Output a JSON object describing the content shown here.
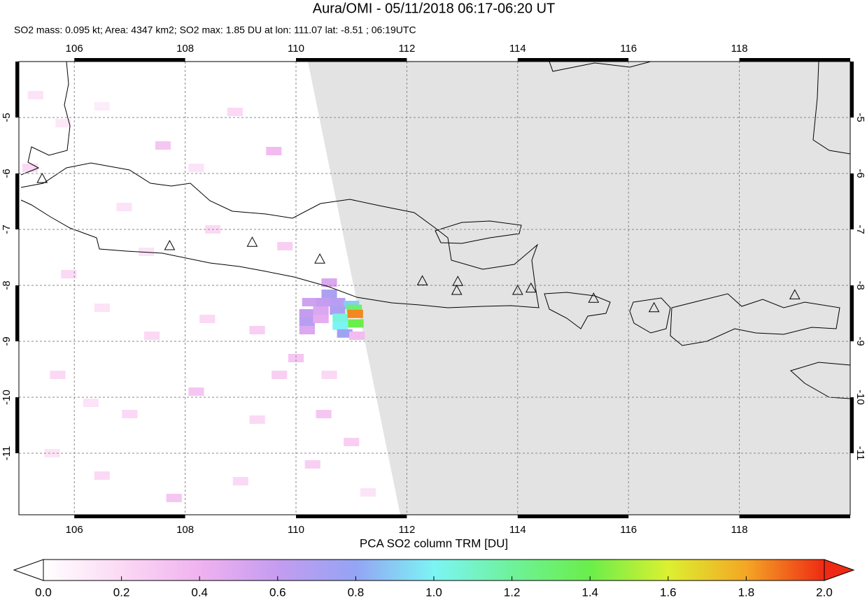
{
  "chart_data": {
    "type": "map",
    "title": "Aura/OMI - 05/11/2018 06:17-06:20 UT",
    "subtitle": "SO2 mass: 0.095 kt; Area: 4347 km2; SO2 max: 1.85 DU at lon: 111.07 lat: -8.51 ; 06:19UTC",
    "xlim": [
      105,
      120
    ],
    "ylim": [
      -12.1,
      -4
    ],
    "xticks": [
      106,
      108,
      110,
      112,
      114,
      116,
      118
    ],
    "yticks": [
      -5,
      -6,
      -7,
      -8,
      -9,
      -10,
      -11
    ],
    "grid": true,
    "pixels": {
      "lon": [
        105.3,
        105.8,
        106.5,
        107.6,
        108.2,
        109.6,
        108.9,
        105.2,
        106.9,
        107.3,
        108.5,
        109.8,
        105.9,
        106.5,
        107.4,
        108.4,
        109.3,
        109.7,
        105.7,
        106.3,
        107.0,
        108.2,
        109.3,
        110.5,
        111.0,
        105.6,
        106.5,
        107.8,
        109.0,
        110.3,
        111.3,
        110.0,
        110.6,
        110.25,
        110.5,
        110.75,
        111.0,
        110.2,
        110.45,
        110.75,
        111.05,
        110.2,
        110.45,
        110.8,
        110.2,
        110.8,
        111.08,
        110.88,
        110.6,
        110.6,
        111.1,
        111.07
      ],
      "lat": [
        -4.6,
        -5.1,
        -4.8,
        -5.5,
        -5.9,
        -5.6,
        -4.9,
        -5.9,
        -6.6,
        -7.4,
        -7.0,
        -7.3,
        -7.8,
        -8.4,
        -8.9,
        -8.6,
        -8.8,
        -9.6,
        -9.6,
        -10.1,
        -10.3,
        -9.9,
        -10.4,
        -10.3,
        -10.8,
        -11.0,
        -11.4,
        -11.8,
        -11.5,
        -11.2,
        -11.7,
        -9.3,
        -9.6,
        -8.3,
        -8.3,
        -8.3,
        -8.35,
        -8.5,
        -8.45,
        -8.45,
        -8.42,
        -8.65,
        -8.6,
        -8.58,
        -8.8,
        -8.72,
        -8.68,
        -8.86,
        -8.15,
        -7.95,
        -8.9,
        -8.51
      ],
      "values": [
        0.15,
        0.12,
        0.1,
        0.3,
        0.15,
        0.35,
        0.2,
        0.2,
        0.15,
        0.15,
        0.2,
        0.25,
        0.2,
        0.15,
        0.2,
        0.2,
        0.25,
        0.25,
        0.2,
        0.15,
        0.2,
        0.3,
        0.2,
        0.3,
        0.25,
        0.15,
        0.2,
        0.3,
        0.2,
        0.25,
        0.15,
        0.3,
        0.2,
        0.55,
        0.6,
        0.65,
        0.9,
        0.6,
        0.5,
        0.7,
        1.3,
        0.65,
        0.45,
        1.05,
        0.5,
        1.0,
        1.4,
        0.75,
        0.7,
        0.5,
        0.35,
        1.85
      ]
    },
    "volcanoes": {
      "lon": [
        105.42,
        107.72,
        109.21,
        110.43,
        112.28,
        112.92,
        112.9,
        114.0,
        114.24,
        115.37,
        116.46,
        119.0
      ],
      "lat": [
        -6.1,
        -7.3,
        -7.24,
        -7.54,
        -7.93,
        -7.94,
        -8.1,
        -8.1,
        -8.06,
        -8.24,
        -8.41,
        -8.18
      ]
    },
    "colorbar": {
      "label": "PCA SO2 column TRM [DU]",
      "lim": [
        0,
        2
      ],
      "ticks": [
        {
          "value": 0,
          "label": "0.0"
        },
        {
          "value": 0.2,
          "label": "0.2"
        },
        {
          "value": 0.4,
          "label": "0.4"
        },
        {
          "value": 0.6,
          "label": "0.6"
        },
        {
          "value": 0.8,
          "label": "0.8"
        },
        {
          "value": 1,
          "label": "1.0"
        },
        {
          "value": 1.2,
          "label": "1.2"
        },
        {
          "value": 1.4,
          "label": "1.4"
        },
        {
          "value": 1.6,
          "label": "1.6"
        },
        {
          "value": 1.8,
          "label": "1.8"
        },
        {
          "value": 2,
          "label": "2.0"
        }
      ],
      "colors": [
        "#ffffff",
        "#fbd9f4",
        "#f0b2f0",
        "#c49cf0",
        "#94a4f4",
        "#7cf4f4",
        "#6ef29a",
        "#6aee4a",
        "#dcf030",
        "#f4a624",
        "#ee2a14"
      ]
    },
    "nodata_color": "#e3e3e3"
  }
}
